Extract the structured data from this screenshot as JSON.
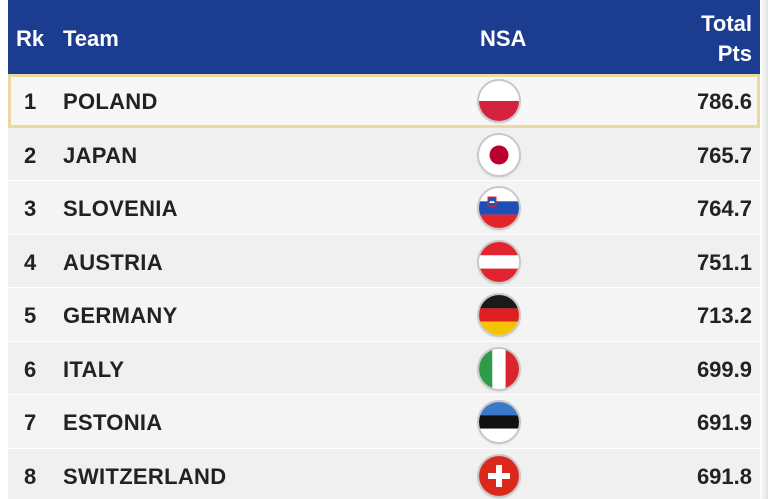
{
  "header": {
    "rk": "Rk",
    "team": "Team",
    "nsa": "NSA",
    "pts_line1": "Total",
    "pts_line2": "Pts"
  },
  "colors": {
    "header_bg": "#1c3d8f",
    "highlight_border": "#ead9a0"
  },
  "rows": [
    {
      "rank": "1",
      "team": "POLAND",
      "flag": "poland-flag-icon",
      "pts": "786.6"
    },
    {
      "rank": "2",
      "team": "JAPAN",
      "flag": "japan-flag-icon",
      "pts": "765.7"
    },
    {
      "rank": "3",
      "team": "SLOVENIA",
      "flag": "slovenia-flag-icon",
      "pts": "764.7"
    },
    {
      "rank": "4",
      "team": "AUSTRIA",
      "flag": "austria-flag-icon",
      "pts": "751.1"
    },
    {
      "rank": "5",
      "team": "GERMANY",
      "flag": "germany-flag-icon",
      "pts": "713.2"
    },
    {
      "rank": "6",
      "team": "ITALY",
      "flag": "italy-flag-icon",
      "pts": "699.9"
    },
    {
      "rank": "7",
      "team": "ESTONIA",
      "flag": "estonia-flag-icon",
      "pts": "691.9"
    },
    {
      "rank": "8",
      "team": "SWITZERLAND",
      "flag": "switzerland-flag-icon",
      "pts": "691.8"
    }
  ]
}
